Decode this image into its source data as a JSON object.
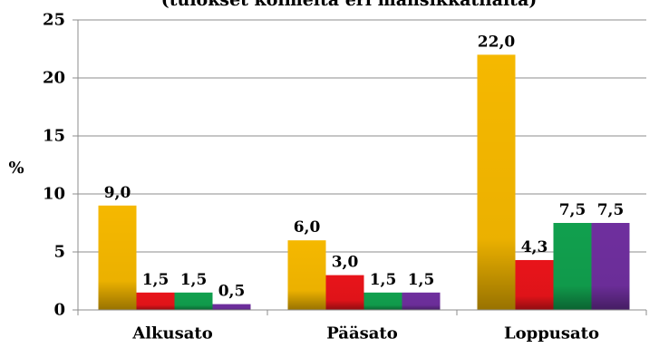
{
  "chart_data": {
    "type": "bar",
    "title": "(tulokset kolmelta eri mansikkatilalta)",
    "ylabel": "%",
    "categories": [
      "Alkusato",
      "Pääsato",
      "Loppusato"
    ],
    "series": [
      {
        "values": [
          9.0,
          6.0,
          22.0
        ],
        "labels": [
          "9,0",
          "6,0",
          "22,0"
        ],
        "color": "#f5b800"
      },
      {
        "values": [
          1.5,
          3.0,
          4.3
        ],
        "labels": [
          "1,5",
          "3,0",
          "4,3"
        ],
        "color": "#e8141a"
      },
      {
        "values": [
          1.5,
          1.5,
          7.5
        ],
        "labels": [
          "1,5",
          "1,5",
          "7,5"
        ],
        "color": "#11a04e"
      },
      {
        "values": [
          0.5,
          1.5,
          7.5
        ],
        "labels": [
          "0,5",
          "1,5",
          "7,5"
        ],
        "color": "#6f2f9e"
      }
    ],
    "ylim": [
      0,
      25
    ],
    "yticks": [
      0,
      5,
      10,
      15,
      20,
      25
    ],
    "grid": true,
    "legend": "none"
  }
}
